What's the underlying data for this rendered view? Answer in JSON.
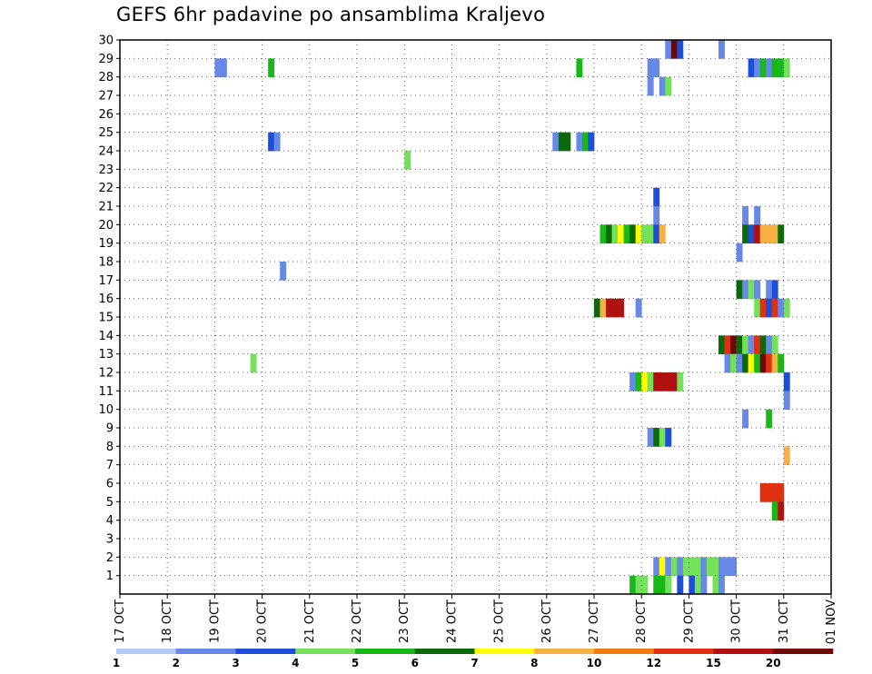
{
  "chart_data": {
    "type": "heatmap",
    "title": "GEFS 6hr padavine po ansamblima Kraljevo",
    "x_tick_labels": [
      "17 OCT",
      "18 OCT",
      "19 OCT",
      "20 OCT",
      "21 OCT",
      "22 OCT",
      "23 OCT",
      "24 OCT",
      "25 OCT",
      "26 OCT",
      "27 OCT",
      "28 OCT",
      "29 OCT",
      "30 OCT",
      "31 OCT",
      "01 NOV"
    ],
    "y_tick_labels": [
      "1",
      "2",
      "3",
      "4",
      "5",
      "6",
      "7",
      "8",
      "9",
      "10",
      "11",
      "12",
      "13",
      "14",
      "15",
      "16",
      "17",
      "18",
      "19",
      "20",
      "21",
      "22",
      "23",
      "24",
      "25",
      "26",
      "27",
      "28",
      "29",
      "30"
    ],
    "xlim": [
      0,
      60
    ],
    "ylim": [
      0,
      30
    ],
    "x_units": "6-hour steps from 17 OCT 00Z",
    "grid": true,
    "colorbar": {
      "labels": [
        "1",
        "2",
        "3",
        "4",
        "5",
        "6",
        "7",
        "8",
        "10",
        "12",
        "15",
        "20"
      ],
      "colors": [
        "#b4c8f8",
        "#6688e8",
        "#1c4ed8",
        "#74e15a",
        "#18b818",
        "#0a6a0a",
        "#ffff00",
        "#f8b040",
        "#f57c10",
        "#e03010",
        "#b01010",
        "#6e0808"
      ]
    },
    "cells": [
      [
        8.0,
        29,
        1
      ],
      [
        8.5,
        29,
        1
      ],
      [
        12.5,
        29,
        4
      ],
      [
        38.5,
        29,
        4
      ],
      [
        44.5,
        29,
        1
      ],
      [
        45.0,
        29,
        1
      ],
      [
        53.0,
        29,
        2
      ],
      [
        53.5,
        29,
        1
      ],
      [
        54.0,
        29,
        4
      ],
      [
        54.5,
        29,
        1
      ],
      [
        55.0,
        29,
        4
      ],
      [
        55.5,
        29,
        4
      ],
      [
        56.0,
        29,
        3
      ],
      [
        44.5,
        28,
        1
      ],
      [
        45.5,
        28,
        1
      ],
      [
        46.0,
        28,
        3
      ],
      [
        46.0,
        30,
        1
      ],
      [
        46.5,
        30,
        11
      ],
      [
        47.0,
        30,
        2
      ],
      [
        50.5,
        30,
        1
      ],
      [
        12.5,
        25,
        2
      ],
      [
        13.0,
        25,
        1
      ],
      [
        36.5,
        25,
        1
      ],
      [
        37.0,
        25,
        5
      ],
      [
        37.5,
        25,
        5
      ],
      [
        38.5,
        25,
        1
      ],
      [
        39.0,
        25,
        4
      ],
      [
        39.5,
        25,
        2
      ],
      [
        24.0,
        24,
        3
      ],
      [
        45.0,
        22,
        2
      ],
      [
        45.0,
        21,
        1
      ],
      [
        52.5,
        21,
        1
      ],
      [
        53.5,
        21,
        1
      ],
      [
        40.5,
        20,
        4
      ],
      [
        41.0,
        20,
        5
      ],
      [
        41.5,
        20,
        3
      ],
      [
        42.0,
        20,
        6
      ],
      [
        42.5,
        20,
        4
      ],
      [
        43.0,
        20,
        5
      ],
      [
        43.5,
        20,
        6
      ],
      [
        44.0,
        20,
        3
      ],
      [
        44.5,
        20,
        3
      ],
      [
        45.0,
        20,
        2
      ],
      [
        45.5,
        20,
        7
      ],
      [
        52.5,
        20,
        5
      ],
      [
        53.0,
        20,
        2
      ],
      [
        53.5,
        20,
        10
      ],
      [
        54.0,
        20,
        7
      ],
      [
        54.5,
        20,
        7
      ],
      [
        55.0,
        20,
        7
      ],
      [
        55.5,
        20,
        5
      ],
      [
        52.0,
        19,
        1
      ],
      [
        13.5,
        18,
        1
      ],
      [
        52.0,
        17,
        5
      ],
      [
        52.5,
        17,
        1
      ],
      [
        53.0,
        17,
        3
      ],
      [
        53.5,
        17,
        1
      ],
      [
        54.5,
        17,
        1
      ],
      [
        55.0,
        17,
        2
      ],
      [
        40.0,
        16,
        5
      ],
      [
        40.5,
        16,
        7
      ],
      [
        41.0,
        16,
        10
      ],
      [
        41.5,
        16,
        10
      ],
      [
        42.0,
        16,
        10
      ],
      [
        43.5,
        16,
        1
      ],
      [
        53.5,
        16,
        3
      ],
      [
        54.0,
        16,
        9
      ],
      [
        54.5,
        16,
        2
      ],
      [
        55.0,
        16,
        9
      ],
      [
        55.5,
        16,
        1
      ],
      [
        56.0,
        16,
        3
      ],
      [
        50.5,
        14,
        5
      ],
      [
        51.0,
        14,
        9
      ],
      [
        51.5,
        14,
        11
      ],
      [
        52.0,
        14,
        5
      ],
      [
        52.5,
        14,
        3
      ],
      [
        53.0,
        14,
        1
      ],
      [
        53.5,
        14,
        9
      ],
      [
        54.0,
        14,
        5
      ],
      [
        54.5,
        14,
        1
      ],
      [
        55.0,
        14,
        3
      ],
      [
        11.0,
        13,
        3
      ],
      [
        51.0,
        13,
        1
      ],
      [
        51.5,
        13,
        3
      ],
      [
        52.0,
        13,
        1
      ],
      [
        52.5,
        13,
        5
      ],
      [
        53.0,
        13,
        6
      ],
      [
        53.5,
        13,
        4
      ],
      [
        54.0,
        13,
        11
      ],
      [
        54.5,
        13,
        9
      ],
      [
        55.0,
        13,
        7
      ],
      [
        55.5,
        13,
        4
      ],
      [
        43.0,
        12,
        1
      ],
      [
        43.5,
        12,
        4
      ],
      [
        44.0,
        12,
        6
      ],
      [
        44.5,
        12,
        3
      ],
      [
        45.0,
        12,
        10
      ],
      [
        45.5,
        12,
        10
      ],
      [
        46.0,
        12,
        10
      ],
      [
        46.5,
        12,
        10
      ],
      [
        47.0,
        12,
        3
      ],
      [
        56.0,
        12,
        2
      ],
      [
        56.0,
        11,
        1
      ],
      [
        52.5,
        10,
        1
      ],
      [
        54.5,
        10,
        4
      ],
      [
        44.5,
        9,
        1
      ],
      [
        45.0,
        9,
        5
      ],
      [
        45.5,
        9,
        3
      ],
      [
        46.0,
        9,
        2
      ],
      [
        56.0,
        8,
        7
      ],
      [
        54.0,
        6,
        9
      ],
      [
        54.5,
        6,
        9
      ],
      [
        55.0,
        6,
        9
      ],
      [
        55.5,
        6,
        9
      ],
      [
        55.0,
        5,
        4
      ],
      [
        55.5,
        5,
        10
      ],
      [
        45.0,
        2,
        1
      ],
      [
        45.5,
        2,
        6
      ],
      [
        46.0,
        2,
        1
      ],
      [
        46.5,
        2,
        3
      ],
      [
        47.0,
        2,
        1
      ],
      [
        47.5,
        2,
        3
      ],
      [
        48.0,
        2,
        3
      ],
      [
        48.5,
        2,
        3
      ],
      [
        49.0,
        2,
        1
      ],
      [
        49.5,
        2,
        3
      ],
      [
        50.0,
        2,
        3
      ],
      [
        50.5,
        2,
        1
      ],
      [
        51.0,
        2,
        1
      ],
      [
        51.5,
        2,
        1
      ],
      [
        43.0,
        1,
        4
      ],
      [
        43.5,
        1,
        3
      ],
      [
        44.0,
        1,
        3
      ],
      [
        45.0,
        1,
        4
      ],
      [
        45.5,
        1,
        4
      ],
      [
        46.0,
        1,
        3
      ],
      [
        47.0,
        1,
        2
      ],
      [
        48.0,
        1,
        2
      ],
      [
        48.5,
        1,
        3
      ],
      [
        49.0,
        1,
        1
      ],
      [
        50.0,
        1,
        3
      ],
      [
        50.5,
        1,
        1
      ]
    ]
  }
}
